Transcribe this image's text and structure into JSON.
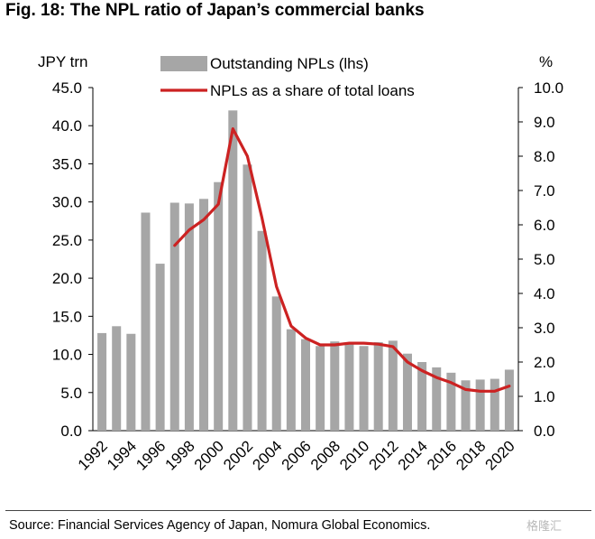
{
  "title": "Fig. 18: The NPL ratio of Japan’s commercial banks",
  "source": "Source: Financial Services Agency of Japan, Nomura Global Economics.",
  "watermark": "格隆汇",
  "chart_data": {
    "type": "bar",
    "y_left_unit": "JPY trn",
    "y_right_unit": "%",
    "ylim_left": [
      0,
      45
    ],
    "ylim_right": [
      0,
      10
    ],
    "left_ticks": [
      "0.0",
      "5.0",
      "10.0",
      "15.0",
      "20.0",
      "25.0",
      "30.0",
      "35.0",
      "40.0",
      "45.0"
    ],
    "right_ticks": [
      "0.0",
      "1.0",
      "2.0",
      "3.0",
      "4.0",
      "5.0",
      "6.0",
      "7.0",
      "8.0",
      "9.0",
      "10.0"
    ],
    "x_tick_labels": [
      "1992",
      "1994",
      "1996",
      "1998",
      "2000",
      "2002",
      "2004",
      "2006",
      "2008",
      "2010",
      "2012",
      "2014",
      "2016",
      "2018",
      "2020"
    ],
    "x": [
      1992,
      1993,
      1994,
      1995,
      1996,
      1997,
      1998,
      1999,
      2000,
      2001,
      2002,
      2003,
      2004,
      2005,
      2006,
      2007,
      2008,
      2009,
      2010,
      2011,
      2012,
      2013,
      2014,
      2015,
      2016,
      2017,
      2018,
      2019,
      2020
    ],
    "bar_series": {
      "name": "Outstanding NPLs (lhs)",
      "color": "#a6a6a6",
      "values": [
        12.8,
        13.7,
        12.7,
        28.6,
        21.9,
        29.9,
        29.8,
        30.4,
        32.6,
        42.0,
        34.9,
        26.2,
        17.6,
        13.3,
        12.0,
        11.1,
        11.7,
        11.4,
        11.1,
        11.6,
        11.8,
        10.1,
        9.0,
        8.3,
        7.6,
        6.6,
        6.7,
        6.8,
        8.0
      ]
    },
    "line_series": {
      "name": "NPLs as a share of total loans",
      "color": "#cc2222",
      "x": [
        1997,
        1998,
        1999,
        2000,
        2001,
        2002,
        2003,
        2004,
        2005,
        2006,
        2007,
        2008,
        2009,
        2010,
        2011,
        2012,
        2013,
        2014,
        2015,
        2016,
        2017,
        2018,
        2019,
        2020
      ],
      "values": [
        5.4,
        5.85,
        6.15,
        6.6,
        8.8,
        8.0,
        6.2,
        4.2,
        3.05,
        2.7,
        2.5,
        2.5,
        2.55,
        2.55,
        2.52,
        2.45,
        2.0,
        1.75,
        1.55,
        1.4,
        1.2,
        1.15,
        1.15,
        1.3
      ]
    },
    "grid": false,
    "legend_position": "top-center"
  }
}
